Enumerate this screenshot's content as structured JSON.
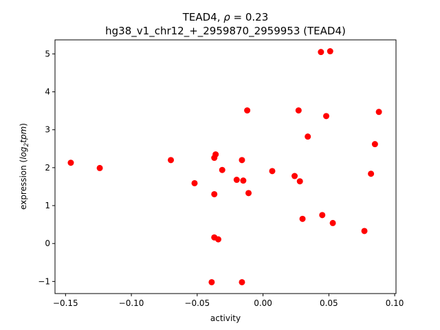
{
  "chart_data": {
    "type": "scatter",
    "title_line1_prefix": "TEAD4, ",
    "title_line1_rho": "ρ",
    "title_line1_suffix": " = 0.23",
    "title_line2": "hg38_v1_chr12_+_2959870_2959953 (TEAD4)",
    "xlabel": "activity",
    "ylabel_prefix": "expression (",
    "ylabel_log": "log",
    "ylabel_sub": "2",
    "ylabel_tpm": "tpm",
    "ylabel_suffix": ")",
    "xlim": [
      -0.158,
      0.101
    ],
    "ylim": [
      -1.32,
      5.37
    ],
    "x_ticks": [
      {
        "value": -0.15,
        "label": "−0.15"
      },
      {
        "value": -0.1,
        "label": "−0.10"
      },
      {
        "value": -0.05,
        "label": "−0.05"
      },
      {
        "value": 0.0,
        "label": "0.00"
      },
      {
        "value": 0.05,
        "label": "0.05"
      },
      {
        "value": 0.1,
        "label": "0.10"
      }
    ],
    "y_ticks": [
      {
        "value": -1,
        "label": "−1"
      },
      {
        "value": 0,
        "label": "0"
      },
      {
        "value": 1,
        "label": "1"
      },
      {
        "value": 2,
        "label": "2"
      },
      {
        "value": 3,
        "label": "3"
      },
      {
        "value": 4,
        "label": "4"
      },
      {
        "value": 5,
        "label": "5"
      }
    ],
    "point_color": "#ff0000",
    "grid": false,
    "points": [
      {
        "x": -0.146,
        "y": 2.13
      },
      {
        "x": -0.124,
        "y": 1.99
      },
      {
        "x": -0.07,
        "y": 2.2
      },
      {
        "x": -0.052,
        "y": 1.59
      },
      {
        "x": -0.039,
        "y": -1.02
      },
      {
        "x": -0.037,
        "y": 0.16
      },
      {
        "x": -0.037,
        "y": 1.3
      },
      {
        "x": -0.037,
        "y": 2.26
      },
      {
        "x": -0.036,
        "y": 2.35
      },
      {
        "x": -0.034,
        "y": 0.11
      },
      {
        "x": -0.031,
        "y": 1.94
      },
      {
        "x": -0.02,
        "y": 1.68
      },
      {
        "x": -0.016,
        "y": 2.2
      },
      {
        "x": -0.016,
        "y": -1.02
      },
      {
        "x": -0.015,
        "y": 1.66
      },
      {
        "x": -0.012,
        "y": 3.51
      },
      {
        "x": -0.011,
        "y": 1.33
      },
      {
        "x": 0.007,
        "y": 1.91
      },
      {
        "x": 0.024,
        "y": 1.78
      },
      {
        "x": 0.027,
        "y": 3.51
      },
      {
        "x": 0.028,
        "y": 1.64
      },
      {
        "x": 0.03,
        "y": 0.65
      },
      {
        "x": 0.034,
        "y": 2.82
      },
      {
        "x": 0.044,
        "y": 5.05
      },
      {
        "x": 0.045,
        "y": 0.75
      },
      {
        "x": 0.048,
        "y": 3.36
      },
      {
        "x": 0.051,
        "y": 5.07
      },
      {
        "x": 0.053,
        "y": 0.54
      },
      {
        "x": 0.077,
        "y": 0.33
      },
      {
        "x": 0.082,
        "y": 1.84
      },
      {
        "x": 0.085,
        "y": 2.62
      },
      {
        "x": 0.088,
        "y": 3.47
      }
    ]
  }
}
